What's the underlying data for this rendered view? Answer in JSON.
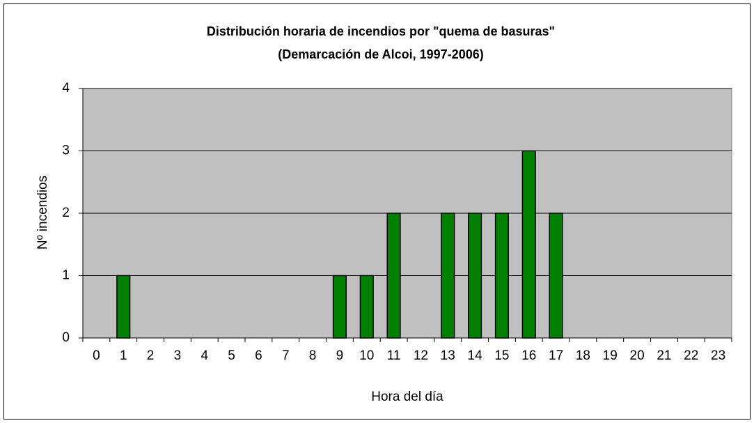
{
  "chart_data": {
    "type": "bar",
    "title": "Distribución horaria de incendios por \"quema de basuras\"",
    "subtitle": "(Demarcación de Alcoi, 1997-2006)",
    "x_label": "Hora del día",
    "y_label": "Nº incendios",
    "categories": [
      "0",
      "1",
      "2",
      "3",
      "4",
      "5",
      "6",
      "7",
      "8",
      "9",
      "10",
      "11",
      "12",
      "13",
      "14",
      "15",
      "16",
      "17",
      "18",
      "19",
      "20",
      "21",
      "22",
      "23"
    ],
    "values": [
      0,
      1,
      0,
      0,
      0,
      0,
      0,
      0,
      0,
      1,
      1,
      2,
      0,
      2,
      2,
      2,
      3,
      2,
      0,
      0,
      0,
      0,
      0,
      0
    ],
    "color": "#008000",
    "ylim": [
      0,
      4
    ],
    "yticks": [
      0,
      1,
      2,
      3,
      4
    ],
    "grid": true
  }
}
